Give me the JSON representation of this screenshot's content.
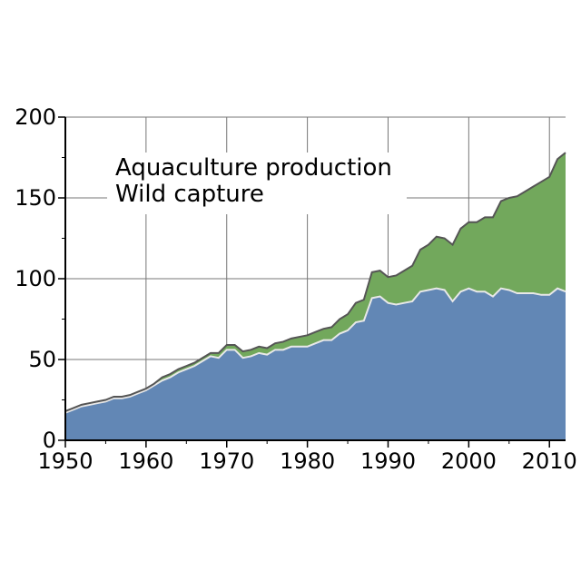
{
  "chart_data": {
    "type": "area",
    "stacked": true,
    "title": "",
    "xlabel": "",
    "ylabel": "",
    "xlim": [
      1950,
      2012
    ],
    "ylim": [
      0,
      200
    ],
    "x_ticks": [
      1950,
      1960,
      1970,
      1980,
      1990,
      2000,
      2010
    ],
    "y_ticks": [
      0,
      50,
      100,
      150,
      200
    ],
    "grid": true,
    "legend": {
      "placement": "top-left",
      "entries": [
        "Aquaculture production",
        "Wild capture"
      ]
    },
    "colors": {
      "wild_capture": "#6287b5",
      "aquaculture": "#72a85c",
      "outline": "#555555",
      "divider": "#e8e8e8",
      "grid": "#777777"
    },
    "x": [
      1950,
      1951,
      1952,
      1953,
      1954,
      1955,
      1956,
      1957,
      1958,
      1959,
      1960,
      1961,
      1962,
      1963,
      1964,
      1965,
      1966,
      1967,
      1968,
      1969,
      1970,
      1971,
      1972,
      1973,
      1974,
      1975,
      1976,
      1977,
      1978,
      1979,
      1980,
      1981,
      1982,
      1983,
      1984,
      1985,
      1986,
      1987,
      1988,
      1989,
      1990,
      1991,
      1992,
      1993,
      1994,
      1995,
      1996,
      1997,
      1998,
      1999,
      2000,
      2001,
      2002,
      2003,
      2004,
      2005,
      2006,
      2007,
      2008,
      2009,
      2010,
      2011,
      2012
    ],
    "series": [
      {
        "name": "Wild capture",
        "values": [
          17,
          19,
          21,
          22,
          23,
          24,
          26,
          26,
          27,
          29,
          31,
          34,
          37,
          39,
          42,
          44,
          46,
          49,
          52,
          51,
          56,
          56,
          51,
          52,
          54,
          53,
          56,
          56,
          58,
          58,
          58,
          60,
          62,
          62,
          66,
          68,
          73,
          74,
          88,
          89,
          85,
          84,
          85,
          86,
          92,
          93,
          94,
          93,
          86,
          92,
          94,
          92,
          92,
          89,
          94,
          93,
          91,
          91,
          91,
          90,
          90,
          94,
          92
        ]
      },
      {
        "name": "Aquaculture production",
        "values": [
          1,
          1,
          1,
          1,
          1,
          1,
          1,
          1,
          1,
          1,
          1,
          1,
          2,
          2,
          2,
          2,
          2,
          2,
          2,
          3,
          3,
          3,
          4,
          4,
          4,
          4,
          4,
          5,
          5,
          6,
          7,
          7,
          7,
          8,
          9,
          10,
          12,
          13,
          16,
          16,
          16,
          18,
          20,
          22,
          26,
          28,
          32,
          32,
          35,
          39,
          41,
          43,
          46,
          49,
          54,
          57,
          60,
          63,
          66,
          70,
          73,
          80,
          86
        ]
      }
    ]
  }
}
